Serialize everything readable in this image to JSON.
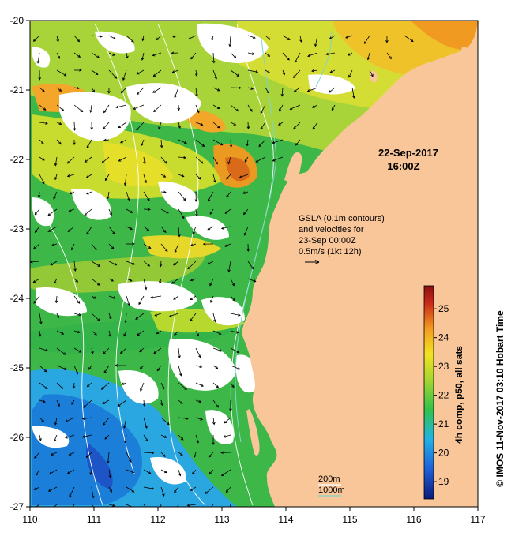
{
  "map": {
    "lon_range": [
      110,
      117
    ],
    "lat_range": [
      -27,
      -20
    ],
    "lon_ticks": [
      "110",
      "111",
      "112",
      "113",
      "114",
      "115",
      "116",
      "117"
    ],
    "lat_ticks": [
      "-20",
      "-21",
      "-22",
      "-23",
      "-24",
      "-25",
      "-26",
      "-27"
    ],
    "land_color": "#f9c69a",
    "no_data_color": "#ffffff"
  },
  "date": {
    "day": "22-Sep-2017",
    "time": "16:00Z"
  },
  "legend": {
    "gsla_line1": "GSLA (0.1m contours)",
    "gsla_line2": "and velocities for",
    "gsla_line3": "23-Sep 00:00Z",
    "gsla_line4": "0.5m/s (1kt 12h)"
  },
  "bathymetry": {
    "label_200": "200m",
    "label_1000": "1000m",
    "color_200": "#ffffff",
    "color_1000": "#7fd6c8"
  },
  "colorbar": {
    "title": "4h comp, p50, all sats",
    "ticks": [
      "19",
      "20",
      "21",
      "22",
      "23",
      "24",
      "25"
    ],
    "range": [
      18.4,
      25.8
    ],
    "colors": [
      "#0a1a7a",
      "#1f5fd6",
      "#22b2e6",
      "#33c24a",
      "#a6d62e",
      "#f2e224",
      "#f39a1f",
      "#c8281a",
      "#8a1010"
    ]
  },
  "credit": "© IMOS 11-Nov-2017 03:10 Hobart Time"
}
